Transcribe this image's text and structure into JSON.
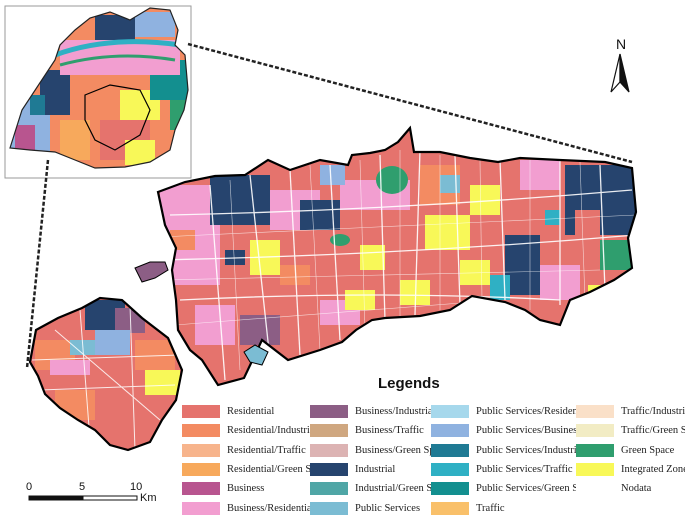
{
  "legend": {
    "title": "Legends",
    "items": [
      {
        "label": "Residential",
        "color": "#e5736d"
      },
      {
        "label": "Residential/Industrial",
        "color": "#f38b62"
      },
      {
        "label": "Residential/Traffic",
        "color": "#f7b48c"
      },
      {
        "label": "Residential/Green Space",
        "color": "#f7a95c"
      },
      {
        "label": "Business",
        "color": "#b8558f"
      },
      {
        "label": "Business/Residential",
        "color": "#f29ed0"
      },
      {
        "label": "Business/Industrial",
        "color": "#8c5e85"
      },
      {
        "label": "Business/Traffic",
        "color": "#cfa780"
      },
      {
        "label": "Business/Green Space",
        "color": "#dcb3b3"
      },
      {
        "label": "Industrial",
        "color": "#26446e"
      },
      {
        "label": "Industrial/Green Space",
        "color": "#4fa6a6"
      },
      {
        "label": "Public Services",
        "color": "#7bbcd3"
      },
      {
        "label": "Public Services/Residential",
        "color": "#a6d8ec"
      },
      {
        "label": "Public Services/Business",
        "color": "#8fb2e0"
      },
      {
        "label": "Public Services/Industrial",
        "color": "#1f7a94"
      },
      {
        "label": "Public Services/Traffic",
        "color": "#2fb0c4"
      },
      {
        "label": "Public Services/Green Space",
        "color": "#138f8f"
      },
      {
        "label": "Traffic",
        "color": "#f9c06a"
      },
      {
        "label": "Traffic/Industrial",
        "color": "#fae0c8"
      },
      {
        "label": "Traffic/Green Space",
        "color": "#f2ecc4"
      },
      {
        "label": "Green Space",
        "color": "#2f9e6e"
      },
      {
        "label": "Integrated Zones",
        "color": "#f8f858"
      },
      {
        "label": "Nodata",
        "color": "#ffffff"
      }
    ]
  },
  "scalebar": {
    "ticks": [
      "0",
      "5",
      "10"
    ],
    "unit": "Km"
  },
  "north_arrow": {
    "label": "N"
  }
}
